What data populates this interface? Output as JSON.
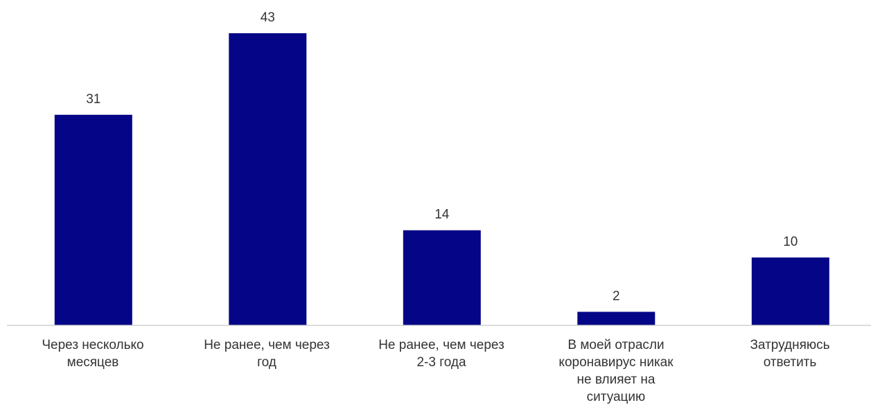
{
  "chart_data": {
    "type": "bar",
    "categories": [
      "Через несколько\nмесяцев",
      "Не ранее, чем через\nгод",
      "Не ранее, чем через\n2-3 года",
      "В моей отрасли\nкоронавирус никак\nне влияет на\nситуацию",
      "Затрудняюсь\nответить"
    ],
    "values": [
      31,
      43,
      14,
      2,
      10
    ],
    "data_labels": [
      "31",
      "43",
      "14",
      "2",
      "10"
    ],
    "title": "",
    "xlabel": "",
    "ylabel": "",
    "ylim": [
      0,
      43
    ],
    "grid": false,
    "legend": "none",
    "bar_color": "#050587",
    "axis_color": "#d0d0d0",
    "label_color": "#333333"
  }
}
